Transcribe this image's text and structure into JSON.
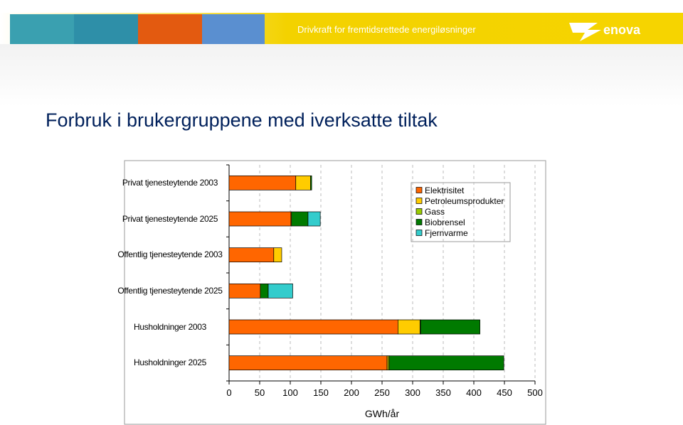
{
  "header": {
    "tagline": "Drivkraft for fremtidsrettede energiløsninger",
    "logo": "enova"
  },
  "chart_data": {
    "type": "bar",
    "orientation": "horizontal",
    "stacked": true,
    "title": "Forbruk i brukergruppene med iverksatte tiltak",
    "categories": [
      "Privat tjenesteytende 2003",
      "Privat tjenesteytende 2025",
      "Offentlig tjenesteytende 2003",
      "Offentlig tjenesteytende 2025",
      "Husholdninger 2003",
      "Husholdninger 2025"
    ],
    "series": [
      {
        "name": "Elektrisitet",
        "color": "#ff6600",
        "values": [
          109,
          101,
          73,
          51,
          276,
          258
        ]
      },
      {
        "name": "Petroleumsprodukter",
        "color": "#ffcc00",
        "values": [
          24,
          1,
          13,
          0,
          36,
          2
        ]
      },
      {
        "name": "Gass",
        "color": "#99cc00",
        "values": [
          0,
          0,
          0,
          0,
          1,
          2
        ]
      },
      {
        "name": "Biobrensel",
        "color": "#007a00",
        "values": [
          2,
          27,
          0,
          13,
          97,
          187
        ]
      },
      {
        "name": "Fjernvarme",
        "color": "#33cccc",
        "values": [
          0,
          20,
          0,
          40,
          0,
          0
        ]
      }
    ],
    "xlabel": "GWh/år",
    "xlim": [
      0,
      500
    ],
    "xticks": [
      0,
      50,
      100,
      150,
      200,
      250,
      300,
      350,
      400,
      450,
      500
    ],
    "grid": true,
    "legend": "upper right"
  }
}
